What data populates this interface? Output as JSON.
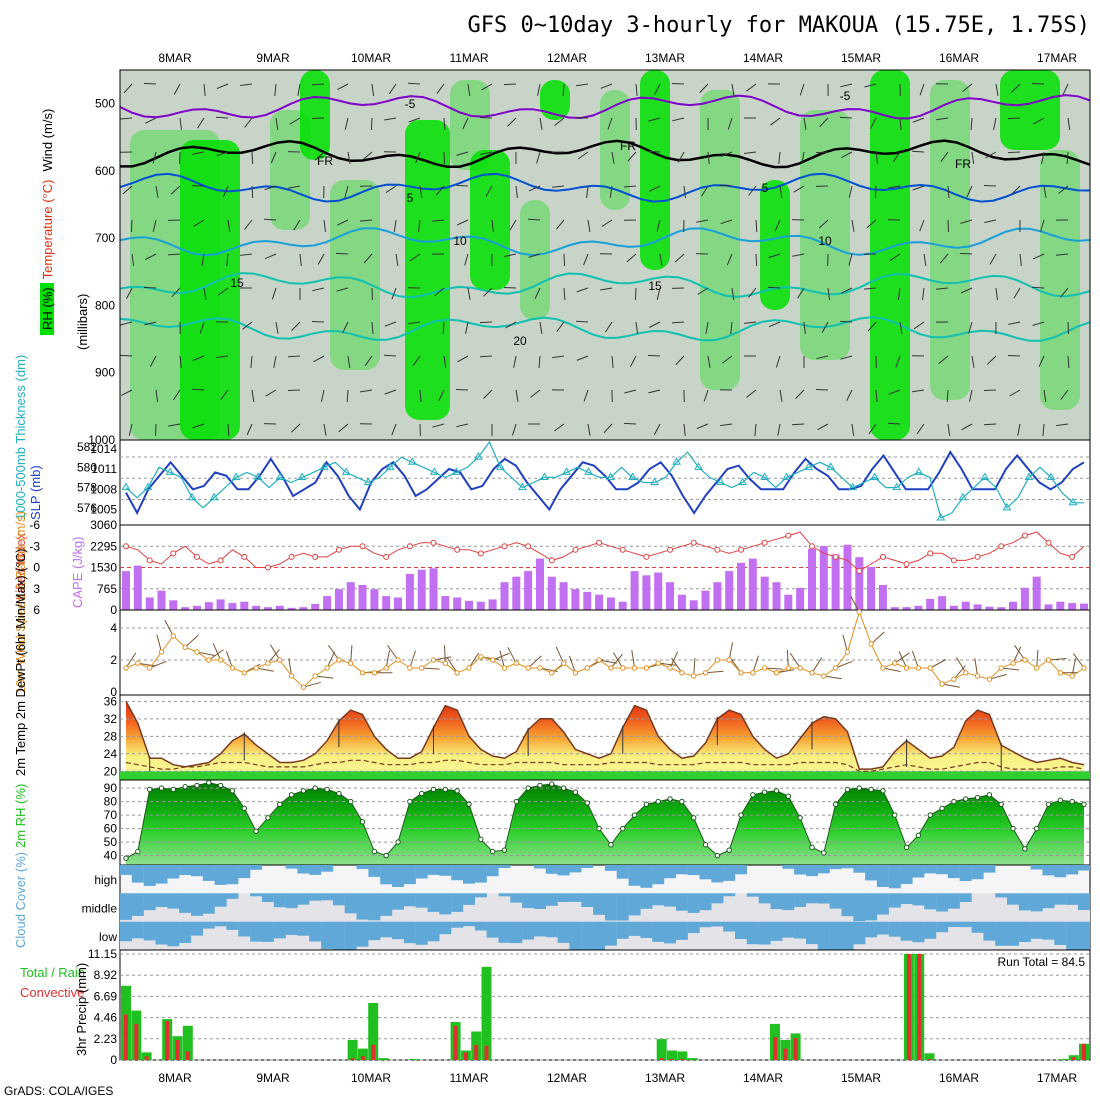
{
  "title": "GFS 0~10day 3-hourly for MAKOUA (15.75E, 1.75S)",
  "footer": "GrADS: COLA/IGES",
  "colors": {
    "rh_light": "#c8d4c8",
    "rh_mid": "#78d878",
    "rh_green": "#00e000",
    "temp_line": "#7f00c8",
    "fr_line": "#000000",
    "temp_blue": "#0050d0",
    "temp_cyan": "#1aa0d8",
    "temp_teal": "#10c0b0",
    "slp": "#2040c0",
    "thick": "#20b0c0",
    "li": "#e04040",
    "cape": "#c070f0",
    "wind10": "#e09020",
    "tmax": "#e03010",
    "rain_total": "#20c020",
    "rain_conv": "#e03030",
    "cloud": "#60a8d8"
  },
  "chart_data": [
    {
      "type": "heatmap",
      "panel": "upper-air",
      "ylabel": "RH (%)  Temperature (°C)  Wind (m/s)",
      "y_axis_title": "(millibars)",
      "x_ticks": [
        "8MAR",
        "9MAR",
        "10MAR",
        "11MAR",
        "12MAR",
        "13MAR",
        "14MAR",
        "15MAR",
        "16MAR",
        "17MAR"
      ],
      "y_ticks": [
        500,
        600,
        700,
        800,
        900,
        1000
      ],
      "ylim": [
        450,
        1000
      ],
      "contour_labels": [
        "-5",
        "-5",
        "FR",
        "FR",
        "FR",
        "5",
        "5",
        "10",
        "10",
        "15",
        "15",
        "20"
      ],
      "isotherms": [
        {
          "label": "-5",
          "level": 505
        },
        {
          "label": "FR",
          "level": 575
        },
        {
          "label": "5",
          "level": 625
        },
        {
          "label": "10",
          "level": 705
        },
        {
          "label": "15",
          "level": 770
        },
        {
          "label": "20",
          "level": 835
        }
      ]
    },
    {
      "type": "line",
      "panel": "thickness-slp",
      "ylabel_left": "1000-500mb Thickness (dm)",
      "ylabel_right": "SLP (mb)",
      "left_ticks": [
        "582",
        "580",
        "578",
        "576"
      ],
      "right_ticks": [
        "1014",
        "1011",
        "1008",
        "1005"
      ],
      "left_range": [
        574.5,
        582.5
      ],
      "right_range": [
        1003,
        1015
      ],
      "series": [
        {
          "name": "SLP",
          "axis": "right",
          "values": [
            1007.5,
            1004.5,
            1008,
            1010,
            1012,
            1010,
            1008,
            1008.5,
            1010.5,
            1010,
            1008,
            1008,
            1010,
            1012.5,
            1010,
            1007,
            1008,
            1009,
            1012,
            1010,
            1007,
            1005,
            1009,
            1011,
            1012,
            1010,
            1007,
            1008,
            1009.5,
            1011,
            1010.5,
            1008,
            1008.5,
            1011,
            1012.5,
            1011.5,
            1009,
            1007,
            1005,
            1008,
            1010,
            1012,
            1011.5,
            1010,
            1008,
            1008,
            1009,
            1011,
            1012,
            1010,
            1007,
            1004.5,
            1007,
            1009,
            1011,
            1011.5,
            1009.5,
            1008,
            1008,
            1008,
            1010.5,
            1012.5,
            1011,
            1010,
            1008,
            1008,
            1008.5,
            1011,
            1013,
            1010.5,
            1008,
            1008,
            1008,
            1010.5,
            1013.5,
            1011,
            1008,
            1008,
            1008,
            1011,
            1013,
            1011,
            1009,
            1008,
            1009,
            1011,
            1012
          ]
        },
        {
          "name": "Thickness",
          "axis": "left",
          "values": [
            578,
            577,
            578,
            580,
            579.5,
            579,
            577,
            576,
            577,
            578,
            579,
            579.5,
            579,
            578,
            579,
            578.5,
            579,
            579.5,
            580,
            580.5,
            579.5,
            579,
            578.5,
            579,
            580,
            581,
            580.5,
            580,
            579.5,
            579,
            579.5,
            580,
            581,
            582.5,
            580,
            579,
            578,
            578.5,
            579,
            579,
            579.5,
            580,
            579.5,
            579,
            579,
            580,
            579,
            578.5,
            578.5,
            579,
            580.5,
            581.5,
            580,
            579,
            578.5,
            578,
            578.5,
            579.5,
            579,
            578,
            579,
            579.5,
            580,
            580.5,
            580,
            579,
            578,
            578.5,
            579,
            578,
            578,
            579,
            579.5,
            579,
            575,
            575.5,
            577,
            578,
            579,
            578,
            576,
            577,
            579,
            580,
            579,
            577.5,
            576.5,
            576.5
          ]
        }
      ]
    },
    {
      "type": "bar",
      "panel": "lifted-cape",
      "ylabel_left": "Lifted Index",
      "ylabel_right": "CAPE (J/kg)",
      "left_ticks": [
        "-6",
        "-3",
        "0",
        "3",
        "6"
      ],
      "right_ticks": [
        "3060",
        "2295",
        "1530",
        "765",
        "0"
      ],
      "cape_range": [
        0,
        3060
      ],
      "li_range": [
        6,
        -6
      ],
      "series": [
        {
          "name": "CAPE",
          "values": [
            1400,
            1600,
            450,
            700,
            350,
            100,
            150,
            280,
            380,
            250,
            300,
            150,
            100,
            150,
            80,
            100,
            220,
            500,
            750,
            1000,
            900,
            750,
            500,
            450,
            1300,
            1450,
            1500,
            500,
            450,
            330,
            300,
            380,
            1000,
            1200,
            1400,
            1850,
            1200,
            1000,
            750,
            650,
            550,
            450,
            300,
            1400,
            1250,
            1350,
            1000,
            550,
            350,
            700,
            1000,
            1400,
            1700,
            1850,
            1200,
            1000,
            550,
            800,
            2200,
            2300,
            2000,
            2350,
            1900,
            1550,
            900,
            100,
            100,
            150,
            400,
            500,
            150,
            300,
            200,
            120,
            100,
            300,
            800,
            1200,
            200,
            300,
            250,
            230
          ]
        },
        {
          "name": "Lifted Index",
          "values": [
            -3,
            -2.5,
            -1,
            -0.5,
            -2,
            -3,
            -1.5,
            -0.5,
            -1,
            -2.5,
            -1.5,
            0,
            0,
            -0.5,
            -1.5,
            -2,
            -1.5,
            -1.5,
            -2.5,
            -3,
            -3,
            -2,
            -1.5,
            -2.5,
            -3,
            -3.5,
            -3.5,
            -3,
            -2.5,
            -2.5,
            -2,
            -2.5,
            -3,
            -3.5,
            -3,
            -2,
            -1,
            -1.5,
            -2.5,
            -3,
            -3.5,
            -3,
            -2.5,
            -2,
            -1.5,
            -2,
            -2.5,
            -3,
            -3.5,
            -3,
            -2.5,
            -2,
            -2.5,
            -3,
            -3.5,
            -4,
            -4.5,
            -5,
            -3,
            -2,
            -1.5,
            -1,
            0.5,
            -0.5,
            -1.5,
            -1,
            -0.5,
            -1,
            -2,
            -2,
            -1,
            -1,
            -1.5,
            -2,
            -3,
            -3.5,
            -4.5,
            -5,
            -3.5,
            -2,
            -1.5,
            -3
          ]
        }
      ]
    },
    {
      "type": "line",
      "panel": "wind10m",
      "ylabel": "10m Wind Speed & Barbs (m/s)",
      "y_ticks": [
        "4",
        "2",
        "0"
      ],
      "ylim": [
        0,
        5
      ],
      "series": [
        {
          "name": "10m Wind Speed",
          "values": [
            1.5,
            1.8,
            1.5,
            2.5,
            3.5,
            2.8,
            2.5,
            2,
            2,
            1.5,
            1.2,
            1.5,
            1.8,
            2,
            1,
            0.3,
            1,
            1.5,
            2,
            1.8,
            1.2,
            1.2,
            1.5,
            2,
            1.5,
            1.5,
            2,
            1.8,
            1.2,
            1.5,
            2.2,
            2,
            1.5,
            1.8,
            1.5,
            1.5,
            1.2,
            1.8,
            1.2,
            1.5,
            2,
            1.5,
            1.5,
            1.5,
            1.5,
            1.8,
            1.5,
            1.2,
            1,
            1.2,
            2,
            2,
            1.2,
            1.2,
            1.5,
            1.2,
            1.5,
            1.5,
            1.2,
            1,
            1.5,
            2.5,
            5,
            3,
            1.5,
            1.8,
            1.5,
            1.5,
            1.5,
            0.5,
            0.8,
            1.2,
            1,
            0.8,
            1.5,
            1.8,
            2,
            1.5,
            2,
            1.2,
            1,
            1.5
          ]
        }
      ]
    },
    {
      "type": "area",
      "panel": "temperature",
      "ylabel": "2m Temp  2m DewPt  (6hr Min/Max) (°C)",
      "y_ticks": [
        "36",
        "32",
        "28",
        "24",
        "20"
      ],
      "ylim": [
        18,
        37
      ],
      "series": [
        {
          "name": "2m Temp",
          "values": [
            36,
            31,
            23,
            23,
            21.5,
            21,
            21.5,
            22,
            24,
            27,
            28.5,
            26,
            24,
            22,
            22,
            22.5,
            24,
            27,
            31.5,
            34,
            33,
            28,
            25,
            23,
            23,
            24.5,
            30,
            35,
            34,
            28,
            25,
            23.5,
            23,
            24.5,
            29.5,
            32,
            32,
            29,
            25,
            24,
            23,
            24,
            30,
            35,
            34,
            28,
            25,
            23,
            23.5,
            26.5,
            32,
            34,
            33,
            28,
            25,
            23,
            24,
            27.5,
            31,
            32.5,
            32,
            29,
            20.5,
            20.5,
            21,
            24.5,
            27,
            25,
            23,
            23.5,
            25.5,
            31.5,
            34,
            33,
            26,
            24.5,
            23,
            22,
            22.5,
            23,
            22,
            21.5
          ]
        },
        {
          "name": "2m DewPt",
          "values": [
            22,
            21.5,
            21,
            20.5,
            20.5,
            21,
            21,
            21.5,
            22,
            22,
            22,
            21.5,
            21,
            21,
            21,
            21,
            21.5,
            22,
            22,
            22.5,
            22.5,
            22,
            21.5,
            21.5,
            21.5,
            22,
            22,
            22.5,
            22.5,
            22,
            21.5,
            21.5,
            21.5,
            22,
            22,
            22,
            22,
            21.5,
            21.5,
            21.5,
            21.5,
            22,
            22,
            22,
            22,
            21.5,
            21.5,
            21.5,
            21.5,
            22,
            22,
            22,
            22,
            21.5,
            21.5,
            21.5,
            21.5,
            22,
            22,
            22,
            22,
            21.5,
            20,
            20,
            20.5,
            21,
            21.5,
            21,
            20.5,
            20.5,
            21,
            21.5,
            22,
            22,
            21,
            20.5,
            20.5,
            20.5,
            20.5,
            21,
            21,
            20.5
          ]
        }
      ]
    },
    {
      "type": "area",
      "panel": "rh2m",
      "ylabel": "2m RH (%)",
      "y_ticks": [
        "90",
        "80",
        "70",
        "60",
        "50",
        "40"
      ],
      "ylim": [
        33,
        96
      ],
      "series": [
        {
          "name": "2m RH",
          "values": [
            38,
            43,
            89,
            90,
            89,
            91,
            92,
            94,
            92,
            88,
            75,
            58,
            68,
            78,
            85,
            88,
            90,
            89,
            86,
            80,
            65,
            43,
            40,
            50,
            80,
            86,
            89,
            89,
            88,
            78,
            52,
            43,
            44,
            80,
            90,
            92,
            93,
            90,
            87,
            79,
            60,
            48,
            60,
            70,
            78,
            80,
            82,
            80,
            68,
            48,
            40,
            44,
            70,
            85,
            87,
            88,
            84,
            68,
            46,
            42,
            78,
            89,
            90,
            89,
            88,
            70,
            46,
            55,
            70,
            75,
            80,
            82,
            83,
            85,
            78,
            60,
            45,
            60,
            78,
            81,
            80,
            78
          ]
        }
      ]
    },
    {
      "type": "bar",
      "panel": "cloud-cover",
      "ylabel": "Cloud Cover (%)",
      "categories": [
        "high",
        "middle",
        "low"
      ]
    },
    {
      "type": "bar",
      "panel": "precip",
      "ylabel": "3hr Precip (mm)",
      "y_ticks": [
        "11.15",
        "8.92",
        "6.69",
        "4.46",
        "2.23",
        "0"
      ],
      "ylim": [
        0,
        11.15
      ],
      "legend": "Total / Rain  Convective",
      "run_total": "Run Total = 84.5",
      "series": [
        {
          "name": "Total / Rain",
          "values": [
            7.8,
            5.2,
            0.8,
            0,
            4.3,
            2.5,
            3.6,
            0,
            0,
            0,
            0,
            0,
            0,
            0,
            0,
            0,
            0,
            0,
            0,
            0,
            0,
            0,
            2.1,
            1.2,
            6.0,
            0.2,
            0,
            0,
            0.1,
            0,
            0,
            0,
            4.0,
            1.0,
            3.0,
            9.8,
            0,
            0,
            0,
            0,
            0,
            0,
            0,
            0,
            0,
            0,
            0,
            0,
            0,
            0,
            0,
            0,
            2.2,
            1.0,
            0.9,
            0.2,
            0,
            0,
            0,
            0,
            0,
            0,
            0,
            3.8,
            2.1,
            2.8,
            0,
            0,
            0,
            0,
            0,
            0,
            0,
            0,
            0,
            0,
            11.15,
            11.15,
            0.7,
            0,
            0,
            0,
            0,
            0,
            0,
            0,
            0,
            0,
            0,
            0,
            0,
            0.1,
            0.5,
            1.7
          ]
        },
        {
          "name": "Convective",
          "values": [
            4.8,
            3.8,
            0.4,
            0,
            4.1,
            2.1,
            0.9,
            0,
            0,
            0,
            0,
            0,
            0,
            0,
            0,
            0,
            0,
            0,
            0,
            0,
            0,
            0,
            0.2,
            0.4,
            1.6,
            0,
            0,
            0,
            0,
            0,
            0,
            0,
            3.6,
            0.8,
            1.6,
            1.5,
            0,
            0,
            0,
            0,
            0,
            0,
            0,
            0,
            0,
            0,
            0,
            0,
            0,
            0,
            0,
            0,
            0.2,
            0.1,
            0.1,
            0,
            0,
            0,
            0,
            0,
            0,
            0,
            0,
            2.4,
            1.2,
            2.3,
            0,
            0,
            0,
            0,
            0,
            0,
            0,
            0,
            0,
            0,
            11.15,
            11.15,
            0.1,
            0,
            0,
            0,
            0,
            0,
            0,
            0,
            0,
            0,
            0,
            0,
            0,
            0,
            0.3,
            1.7
          ]
        }
      ]
    }
  ]
}
